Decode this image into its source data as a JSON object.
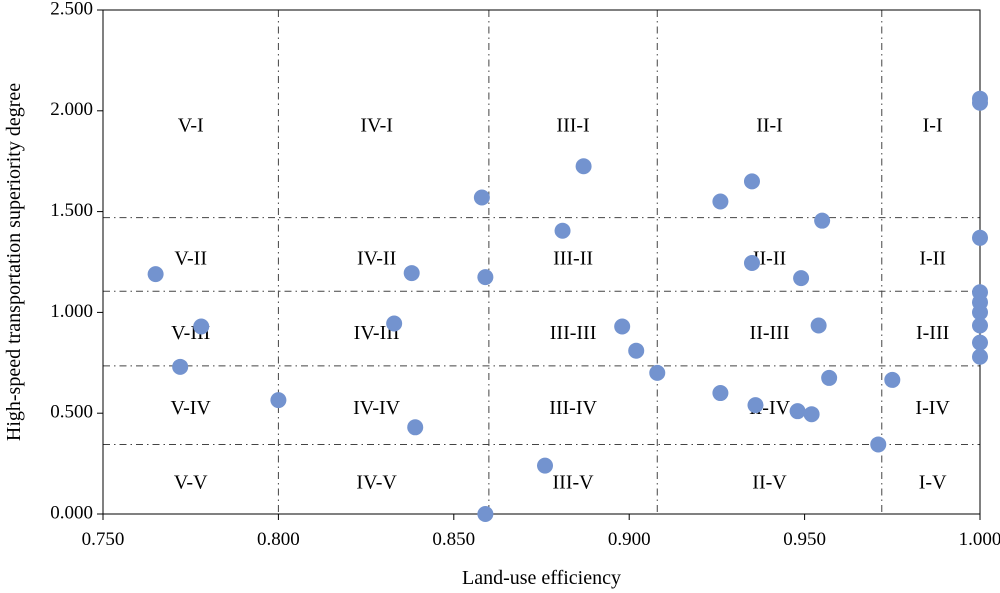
{
  "chart_data": {
    "type": "scatter",
    "title": "",
    "xlabel": "Land-use efficiency",
    "ylabel": "High-speed transportation superiority degree",
    "xlim": [
      0.75,
      1.0
    ],
    "ylim": [
      0.0,
      2.5
    ],
    "xticks": [
      "0.750",
      "0.800",
      "0.850",
      "0.900",
      "0.950",
      "1.000"
    ],
    "yticks": [
      "0.000",
      "0.500",
      "1.000",
      "1.500",
      "2.000",
      "2.500"
    ],
    "grid": false,
    "legend": "none",
    "marker_color": "#7393cf",
    "divider_x": [
      0.8,
      0.86,
      0.908,
      0.972
    ],
    "divider_y": [
      0.345,
      0.735,
      1.105,
      1.47
    ],
    "zone_labels": [
      {
        "text": "V-I",
        "x": 0.775,
        "y": 1.92
      },
      {
        "text": "IV-I",
        "x": 0.828,
        "y": 1.92
      },
      {
        "text": "III-I",
        "x": 0.884,
        "y": 1.92
      },
      {
        "text": "II-I",
        "x": 0.94,
        "y": 1.92
      },
      {
        "text": "I-I",
        "x": 0.9865,
        "y": 1.92
      },
      {
        "text": "V-II",
        "x": 0.775,
        "y": 1.26
      },
      {
        "text": "IV-II",
        "x": 0.828,
        "y": 1.26
      },
      {
        "text": "III-II",
        "x": 0.884,
        "y": 1.26
      },
      {
        "text": "II-II",
        "x": 0.94,
        "y": 1.26
      },
      {
        "text": "I-II",
        "x": 0.9865,
        "y": 1.26
      },
      {
        "text": "V-III",
        "x": 0.775,
        "y": 0.89
      },
      {
        "text": "IV-III",
        "x": 0.828,
        "y": 0.89
      },
      {
        "text": "III-III",
        "x": 0.884,
        "y": 0.89
      },
      {
        "text": "II-III",
        "x": 0.94,
        "y": 0.89
      },
      {
        "text": "I-III",
        "x": 0.9865,
        "y": 0.89
      },
      {
        "text": "V-IV",
        "x": 0.775,
        "y": 0.52
      },
      {
        "text": "IV-IV",
        "x": 0.828,
        "y": 0.52
      },
      {
        "text": "III-IV",
        "x": 0.884,
        "y": 0.52
      },
      {
        "text": "II-IV",
        "x": 0.94,
        "y": 0.52
      },
      {
        "text": "I-IV",
        "x": 0.9865,
        "y": 0.52
      },
      {
        "text": "V-V",
        "x": 0.775,
        "y": 0.15
      },
      {
        "text": "IV-V",
        "x": 0.828,
        "y": 0.15
      },
      {
        "text": "III-V",
        "x": 0.884,
        "y": 0.15
      },
      {
        "text": "II-V",
        "x": 0.94,
        "y": 0.15
      },
      {
        "text": "I-V",
        "x": 0.9865,
        "y": 0.15
      }
    ],
    "points": [
      {
        "x": 0.765,
        "y": 1.19
      },
      {
        "x": 0.778,
        "y": 0.93
      },
      {
        "x": 0.772,
        "y": 0.73
      },
      {
        "x": 0.8,
        "y": 0.565
      },
      {
        "x": 0.833,
        "y": 0.945
      },
      {
        "x": 0.838,
        "y": 1.195
      },
      {
        "x": 0.839,
        "y": 0.43
      },
      {
        "x": 0.858,
        "y": 1.57
      },
      {
        "x": 0.859,
        "y": 1.175
      },
      {
        "x": 0.859,
        "y": 0.0
      },
      {
        "x": 0.876,
        "y": 0.24
      },
      {
        "x": 0.881,
        "y": 1.405
      },
      {
        "x": 0.887,
        "y": 1.725
      },
      {
        "x": 0.898,
        "y": 0.93
      },
      {
        "x": 0.902,
        "y": 0.81
      },
      {
        "x": 0.908,
        "y": 0.7
      },
      {
        "x": 0.926,
        "y": 1.55
      },
      {
        "x": 0.926,
        "y": 0.6
      },
      {
        "x": 0.935,
        "y": 1.65
      },
      {
        "x": 0.935,
        "y": 1.245
      },
      {
        "x": 0.936,
        "y": 0.54
      },
      {
        "x": 0.948,
        "y": 0.51
      },
      {
        "x": 0.949,
        "y": 1.17
      },
      {
        "x": 0.952,
        "y": 0.495
      },
      {
        "x": 0.954,
        "y": 0.935
      },
      {
        "x": 0.955,
        "y": 1.455
      },
      {
        "x": 0.957,
        "y": 0.675
      },
      {
        "x": 0.971,
        "y": 0.345
      },
      {
        "x": 0.975,
        "y": 0.665
      },
      {
        "x": 1.0,
        "y": 2.06
      },
      {
        "x": 1.0,
        "y": 2.04
      },
      {
        "x": 1.0,
        "y": 1.37
      },
      {
        "x": 1.0,
        "y": 1.1
      },
      {
        "x": 1.0,
        "y": 1.05
      },
      {
        "x": 1.0,
        "y": 1.0
      },
      {
        "x": 1.0,
        "y": 0.935
      },
      {
        "x": 1.0,
        "y": 0.85
      },
      {
        "x": 1.0,
        "y": 0.78
      }
    ]
  }
}
